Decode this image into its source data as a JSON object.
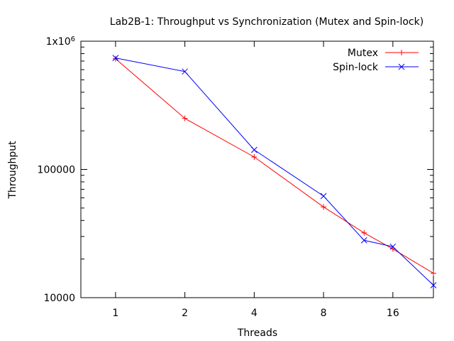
{
  "chart_data": {
    "type": "line",
    "title": "Lab2B-1: Throughput vs Synchronization (Mutex and Spin-lock)",
    "xlabel": "Threads",
    "ylabel": "Throughput",
    "x_scale": "log2",
    "y_scale": "log10",
    "xlim": [
      0.707,
      24
    ],
    "ylim": [
      10000,
      1000000
    ],
    "x_ticks": [
      {
        "value": 1,
        "label": "1"
      },
      {
        "value": 2,
        "label": "2"
      },
      {
        "value": 4,
        "label": "4"
      },
      {
        "value": 8,
        "label": "8"
      },
      {
        "value": 16,
        "label": "16"
      }
    ],
    "y_ticks": [
      {
        "value": 10000,
        "label": "10000"
      },
      {
        "value": 100000,
        "label": "100000"
      },
      {
        "value": 1000000,
        "label": "1x10",
        "sup": "6"
      }
    ],
    "grid": false,
    "legend_position": "top-right",
    "series": [
      {
        "name": "Mutex",
        "color": "#ff0000",
        "marker": "plus",
        "points": [
          [
            1,
            730000
          ],
          [
            2,
            250000
          ],
          [
            4,
            125000
          ],
          [
            8,
            51000
          ],
          [
            12,
            32000
          ],
          [
            16,
            24000
          ],
          [
            24,
            15500
          ]
        ]
      },
      {
        "name": "Spin-lock",
        "color": "#0000ff",
        "marker": "cross",
        "points": [
          [
            1,
            740000
          ],
          [
            2,
            580000
          ],
          [
            4,
            142000
          ],
          [
            8,
            62000
          ],
          [
            12,
            28000
          ],
          [
            16,
            25000
          ],
          [
            24,
            12500
          ]
        ]
      }
    ]
  }
}
